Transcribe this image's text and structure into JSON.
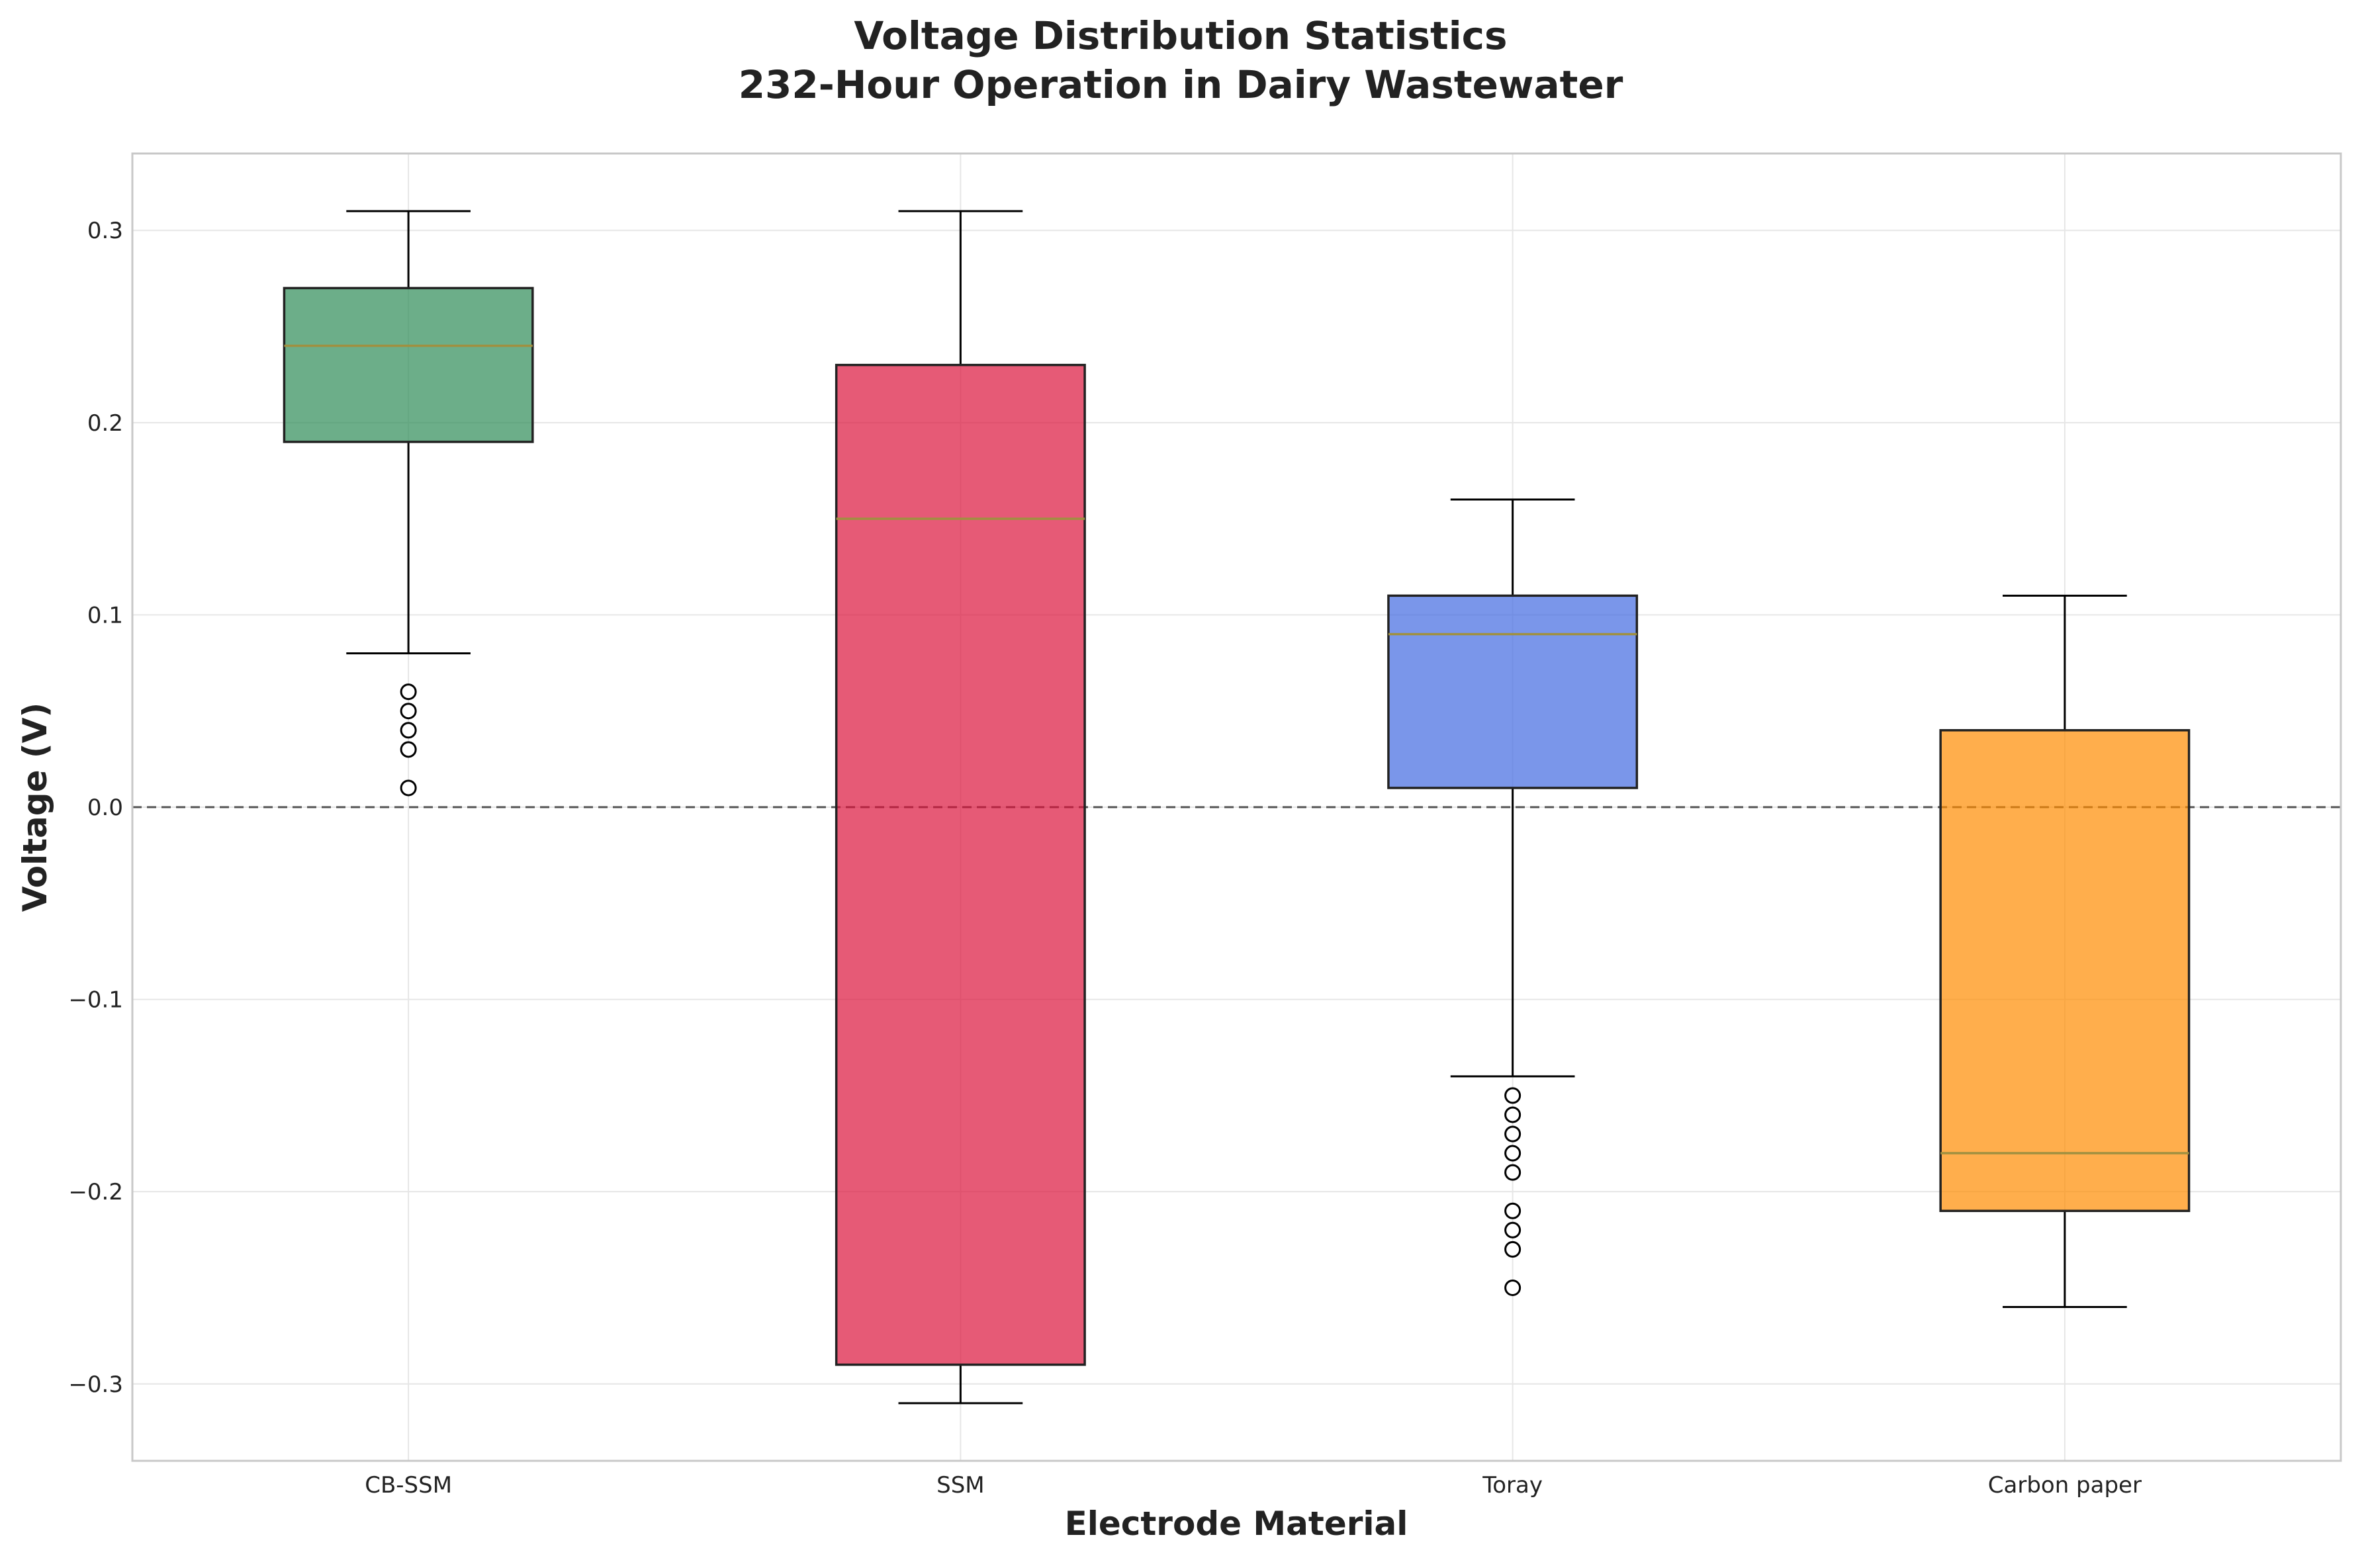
{
  "chart_data": {
    "type": "box",
    "title_lines": [
      "Voltage Distribution Statistics",
      "232-Hour Operation in Dairy Wastewater"
    ],
    "xlabel": "Electrode Material",
    "ylabel": "Voltage (V)",
    "ylim": [
      -0.34,
      0.34
    ],
    "yticks": [
      -0.3,
      -0.2,
      -0.1,
      0.0,
      0.1,
      0.2,
      0.3
    ],
    "ytick_labels": [
      "−0.3",
      "−0.2",
      "−0.1",
      "0.0",
      "0.1",
      "0.2",
      "0.3"
    ],
    "grid": true,
    "reference_line": {
      "y": 0.0,
      "style": "dashed"
    },
    "categories": [
      "CB-SSM",
      "SSM",
      "Toray",
      "Carbon paper"
    ],
    "series": [
      {
        "category": "CB-SSM",
        "color": "#2E8B57",
        "whisker_low": 0.08,
        "q1": 0.19,
        "median": 0.24,
        "q3": 0.27,
        "whisker_high": 0.31,
        "outliers": [
          0.06,
          0.05,
          0.04,
          0.03,
          0.01
        ]
      },
      {
        "category": "SSM",
        "color": "#DC143C",
        "whisker_low": -0.31,
        "q1": -0.29,
        "median": 0.15,
        "q3": 0.23,
        "whisker_high": 0.31,
        "outliers": []
      },
      {
        "category": "Toray",
        "color": "#4169E1",
        "whisker_low": -0.14,
        "q1": 0.01,
        "median": 0.09,
        "q3": 0.11,
        "whisker_high": 0.16,
        "outliers": [
          -0.15,
          -0.16,
          -0.17,
          -0.18,
          -0.19,
          -0.21,
          -0.22,
          -0.23,
          -0.25
        ]
      },
      {
        "category": "Carbon paper",
        "color": "#FF8C00",
        "whisker_low": -0.26,
        "q1": -0.21,
        "median": -0.18,
        "q3": 0.04,
        "whisker_high": 0.11,
        "outliers": []
      }
    ],
    "median_color": "#A09040",
    "box_edge_color": "#222222",
    "box_opacity": 0.7
  }
}
